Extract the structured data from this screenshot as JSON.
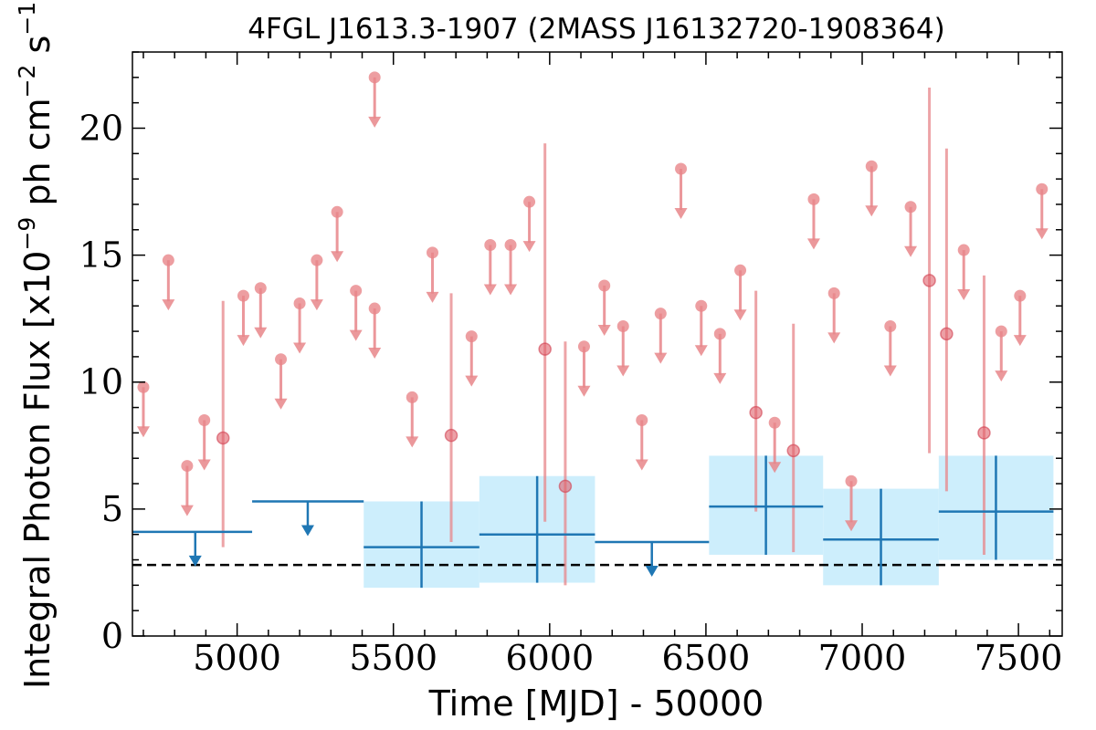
{
  "chart_data": {
    "type": "scatter",
    "title": "4FGL J1613.3-1907 (2MASS J16132720-1908364)",
    "xlabel": "Time [MJD] - 50000",
    "ylabel_parts": [
      "Integral Photon Flux [x10",
      "−9",
      " ph cm",
      "−2",
      " s",
      "−1",
      "]"
    ],
    "xlim": [
      4665,
      7640
    ],
    "ylim": [
      0,
      23
    ],
    "x_ticks": [
      5000,
      5500,
      6000,
      6500,
      7000,
      7500
    ],
    "x_tick_labels": [
      "5000",
      "5500",
      "6000",
      "6500",
      "7000",
      "7500"
    ],
    "y_ticks": [
      0,
      5,
      10,
      15,
      20
    ],
    "y_tick_labels": [
      "0",
      "5",
      "10",
      "15",
      "20"
    ],
    "baseline_flux": 2.8,
    "colors": {
      "short_bins": "#e8868a",
      "yearly_bins": "#1f77b4",
      "yearly_band": "#cdeefc",
      "baseline": "#000000"
    },
    "short_bins": {
      "upper_limits": [
        {
          "x": 4700,
          "y": 9.8
        },
        {
          "x": 4780,
          "y": 14.8
        },
        {
          "x": 4840,
          "y": 6.7
        },
        {
          "x": 4895,
          "y": 8.5
        },
        {
          "x": 5020,
          "y": 13.4
        },
        {
          "x": 5075,
          "y": 13.7
        },
        {
          "x": 5140,
          "y": 10.9
        },
        {
          "x": 5200,
          "y": 13.1
        },
        {
          "x": 5255,
          "y": 14.8
        },
        {
          "x": 5320,
          "y": 16.7
        },
        {
          "x": 5380,
          "y": 13.6
        },
        {
          "x": 5440,
          "y": 12.9
        },
        {
          "x": 5440,
          "y": 22.0
        },
        {
          "x": 5560,
          "y": 9.4
        },
        {
          "x": 5625,
          "y": 15.1
        },
        {
          "x": 5750,
          "y": 11.8
        },
        {
          "x": 5810,
          "y": 15.4
        },
        {
          "x": 5875,
          "y": 15.4
        },
        {
          "x": 5935,
          "y": 17.1
        },
        {
          "x": 6110,
          "y": 11.4
        },
        {
          "x": 6175,
          "y": 13.8
        },
        {
          "x": 6235,
          "y": 12.2
        },
        {
          "x": 6295,
          "y": 8.5
        },
        {
          "x": 6355,
          "y": 12.7
        },
        {
          "x": 6420,
          "y": 18.4
        },
        {
          "x": 6485,
          "y": 13.0
        },
        {
          "x": 6545,
          "y": 11.9
        },
        {
          "x": 6610,
          "y": 14.4
        },
        {
          "x": 6720,
          "y": 8.4
        },
        {
          "x": 6845,
          "y": 17.2
        },
        {
          "x": 6910,
          "y": 13.5
        },
        {
          "x": 6965,
          "y": 6.1
        },
        {
          "x": 7030,
          "y": 18.5
        },
        {
          "x": 7090,
          "y": 12.2
        },
        {
          "x": 7155,
          "y": 16.9
        },
        {
          "x": 7325,
          "y": 15.2
        },
        {
          "x": 7445,
          "y": 12.0
        },
        {
          "x": 7505,
          "y": 13.4
        },
        {
          "x": 7575,
          "y": 17.6
        }
      ],
      "detections": [
        {
          "x": 4955,
          "y": 7.8,
          "lo": 3.5,
          "hi": 13.2
        },
        {
          "x": 5685,
          "y": 7.9,
          "lo": 3.7,
          "hi": 13.5
        },
        {
          "x": 5985,
          "y": 11.3,
          "lo": 4.5,
          "hi": 19.4
        },
        {
          "x": 6050,
          "y": 5.9,
          "lo": 2.0,
          "hi": 11.6
        },
        {
          "x": 6660,
          "y": 8.8,
          "lo": 4.9,
          "hi": 13.6
        },
        {
          "x": 6780,
          "y": 7.3,
          "lo": 3.3,
          "hi": 12.3
        },
        {
          "x": 7215,
          "y": 14.0,
          "lo": 7.2,
          "hi": 21.6
        },
        {
          "x": 7270,
          "y": 11.9,
          "lo": 5.7,
          "hi": 19.2
        },
        {
          "x": 7390,
          "y": 8.0,
          "lo": 3.2,
          "hi": 14.2
        }
      ]
    },
    "yearly_bins": {
      "upper_limits": [
        {
          "x0": 4665,
          "x1": 5048,
          "y": 4.1,
          "arrow_x": 4866
        },
        {
          "x0": 5048,
          "x1": 5405,
          "y": 5.3,
          "arrow_x": 5226
        },
        {
          "x0": 6145,
          "x1": 6510,
          "y": 3.7,
          "arrow_x": 6327
        }
      ],
      "detections": [
        {
          "x0": 5405,
          "x1": 5775,
          "x": 5590,
          "y": 3.5,
          "lo": 1.9,
          "hi": 5.3
        },
        {
          "x0": 5775,
          "x1": 6145,
          "x": 5960,
          "y": 4.0,
          "lo": 2.1,
          "hi": 6.3
        },
        {
          "x0": 6510,
          "x1": 6875,
          "x": 6692,
          "y": 5.1,
          "lo": 3.2,
          "hi": 7.1
        },
        {
          "x0": 6875,
          "x1": 7245,
          "x": 7060,
          "y": 3.8,
          "lo": 2.0,
          "hi": 5.8
        },
        {
          "x0": 7245,
          "x1": 7612,
          "x": 7428,
          "y": 4.9,
          "lo": 3.0,
          "hi": 7.1
        }
      ]
    }
  }
}
